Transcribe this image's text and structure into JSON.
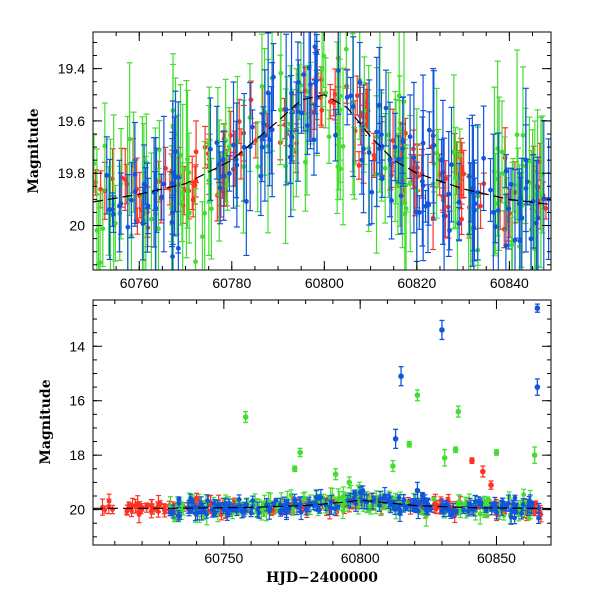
{
  "colors": {
    "red": "#ff3322",
    "green": "#44dd33",
    "blue": "#1155dd",
    "model": "#000000"
  },
  "chart_data": [
    {
      "type": "scatter",
      "title": "",
      "xlabel": "",
      "ylabel": "Magnitude",
      "xlim": [
        60750,
        60849
      ],
      "ylim": [
        20.17,
        19.26
      ],
      "y_inverted": true,
      "xticks": [
        60760,
        60780,
        60800,
        60820,
        60840
      ],
      "xtick_labels": [
        "60760",
        "60780",
        "60800",
        "60820",
        "60840"
      ],
      "yticks": [
        19.4,
        19.6,
        19.8,
        20
      ],
      "ytick_labels": [
        "19.4",
        "19.6",
        "19.8",
        "20"
      ],
      "model_curve": {
        "x": [
          60750,
          60760,
          60770,
          60780,
          60790,
          60795,
          60800,
          60805,
          60810,
          60815,
          60820,
          60830,
          60840,
          60849
        ],
        "y": [
          19.91,
          19.88,
          19.84,
          19.75,
          19.6,
          19.52,
          19.5,
          19.55,
          19.66,
          19.75,
          19.8,
          19.86,
          19.9,
          19.92
        ]
      },
      "series": [
        {
          "color": "red",
          "trend": "model",
          "err_min": 0.04,
          "err_max": 0.12,
          "scatter": 0.07
        },
        {
          "color": "green",
          "trend": "model",
          "err_min": 0.1,
          "err_max": 0.35,
          "scatter": 0.12
        },
        {
          "color": "blue",
          "trend": "model",
          "err_min": 0.06,
          "err_max": 0.3,
          "scatter": 0.1
        }
      ]
    },
    {
      "type": "scatter",
      "title": "",
      "xlabel": "HJD−2400000",
      "ylabel": "Magnitude",
      "xlim": [
        60702,
        60870
      ],
      "ylim": [
        21.3,
        12.3
      ],
      "y_inverted": true,
      "xticks": [
        60750,
        60800,
        60850
      ],
      "xtick_labels": [
        "60750",
        "60800",
        "60850"
      ],
      "yticks": [
        14,
        16,
        18,
        20
      ],
      "ytick_labels": [
        "14",
        "16",
        "18",
        "20"
      ],
      "model_curve": {
        "x": [
          60702,
          60730,
          60760,
          60780,
          60795,
          60800,
          60810,
          60820,
          60840,
          60870
        ],
        "y": [
          19.95,
          19.95,
          19.92,
          19.85,
          19.72,
          19.65,
          19.75,
          19.85,
          19.93,
          19.96
        ]
      },
      "series": [
        {
          "color": "red",
          "range": [
            60705,
            60868
          ],
          "err_min": 0.05,
          "err_max": 0.3,
          "scatter": 0.12
        },
        {
          "color": "green",
          "range": [
            60730,
            60866
          ],
          "err_min": 0.05,
          "err_max": 0.4,
          "scatter": 0.18
        },
        {
          "color": "blue",
          "range": [
            60730,
            60866
          ],
          "err_min": 0.05,
          "err_max": 0.3,
          "scatter": 0.15
        }
      ],
      "outliers": [
        {
          "color": "blue",
          "x": 60865,
          "y": 12.6,
          "err": 0.15
        },
        {
          "color": "blue",
          "x": 60830,
          "y": 13.4,
          "err": 0.35
        },
        {
          "color": "blue",
          "x": 60815,
          "y": 15.1,
          "err": 0.35
        },
        {
          "color": "blue",
          "x": 60865,
          "y": 15.5,
          "err": 0.3
        },
        {
          "color": "blue",
          "x": 60813,
          "y": 17.4,
          "err": 0.35
        },
        {
          "color": "blue",
          "x": 60821,
          "y": 19.3,
          "err": 0.3
        },
        {
          "color": "green",
          "x": 60821,
          "y": 15.8,
          "err": 0.2
        },
        {
          "color": "green",
          "x": 60836,
          "y": 16.4,
          "err": 0.2
        },
        {
          "color": "green",
          "x": 60758,
          "y": 16.6,
          "err": 0.2
        },
        {
          "color": "green",
          "x": 60818,
          "y": 17.6,
          "err": 0.1
        },
        {
          "color": "green",
          "x": 60835,
          "y": 17.8,
          "err": 0.1
        },
        {
          "color": "green",
          "x": 60864,
          "y": 18.0,
          "err": 0.3
        },
        {
          "color": "green",
          "x": 60831,
          "y": 18.1,
          "err": 0.3
        },
        {
          "color": "green",
          "x": 60850,
          "y": 17.9,
          "err": 0.1
        },
        {
          "color": "green",
          "x": 60778,
          "y": 17.9,
          "err": 0.15
        },
        {
          "color": "green",
          "x": 60776,
          "y": 18.5,
          "err": 0.1
        },
        {
          "color": "green",
          "x": 60812,
          "y": 18.4,
          "err": 0.2
        },
        {
          "color": "green",
          "x": 60791,
          "y": 18.7,
          "err": 0.2
        },
        {
          "color": "green",
          "x": 60796,
          "y": 19.0,
          "err": 0.2
        },
        {
          "color": "red",
          "x": 60845,
          "y": 18.6,
          "err": 0.2
        },
        {
          "color": "red",
          "x": 60841,
          "y": 18.2,
          "err": 0.1
        },
        {
          "color": "red",
          "x": 60848,
          "y": 19.1,
          "err": 0.15
        },
        {
          "color": "red",
          "x": 60740,
          "y": 19.6,
          "err": 0.2
        }
      ]
    }
  ]
}
